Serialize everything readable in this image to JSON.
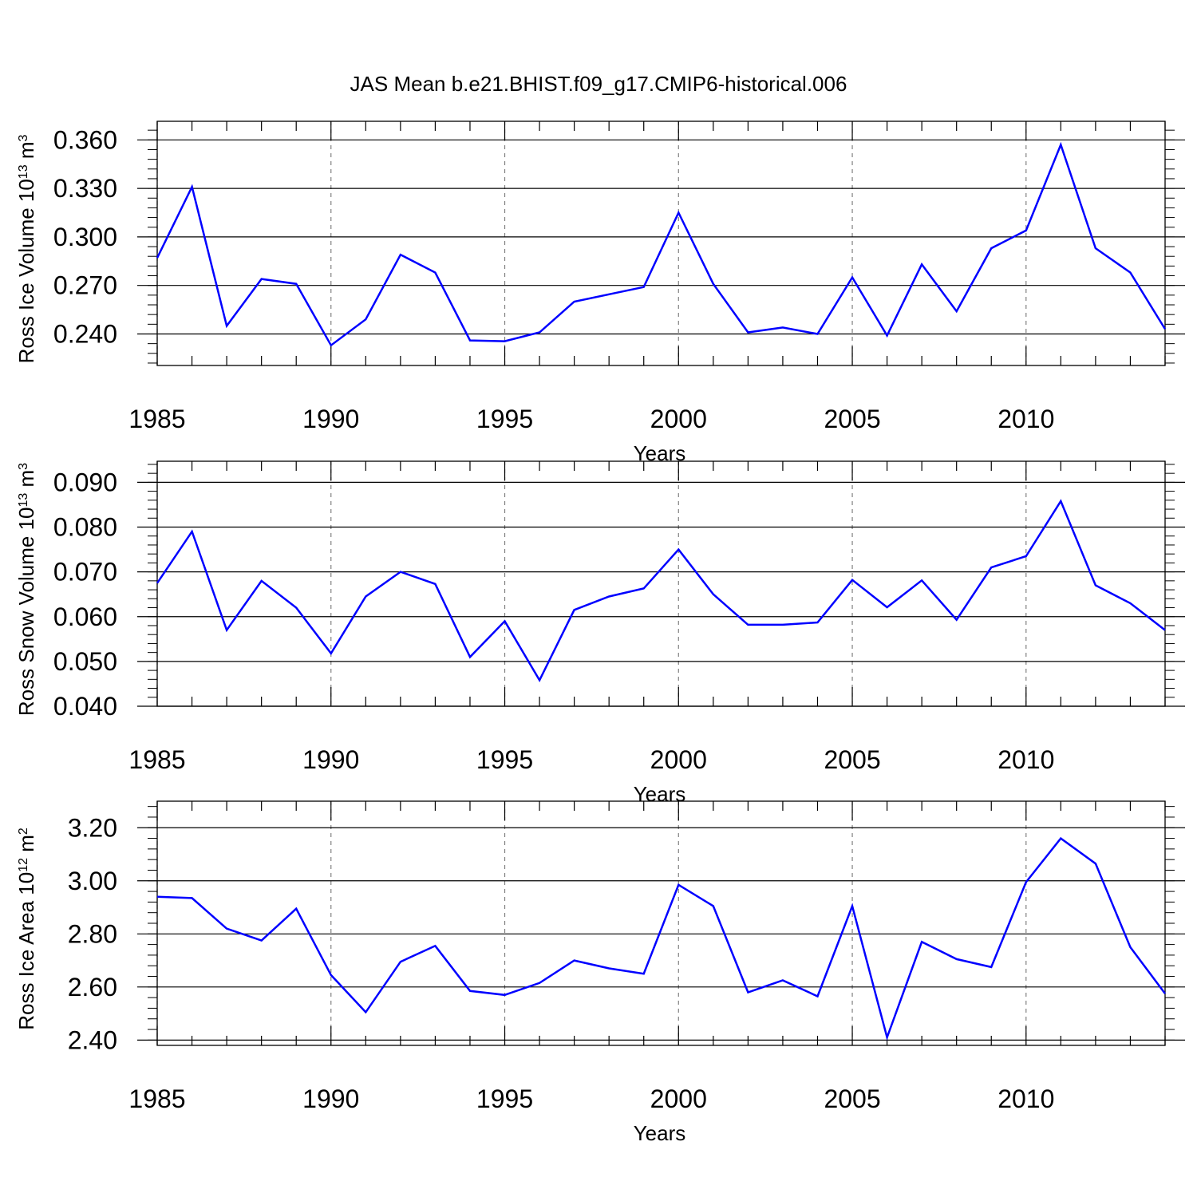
{
  "title": "JAS Mean b.e21.BHIST.f09_g17.CMIP6-historical.006",
  "colors": {
    "line": "#0000ff",
    "axis": "#000000",
    "grid": "#808080"
  },
  "chart_data": [
    {
      "type": "line",
      "title": "JAS Mean b.e21.BHIST.f09_g17.CMIP6-historical.006",
      "ylabel": "Ross Ice Volume",
      "yunit": {
        "base": "10",
        "exp": "13",
        "unit": "m",
        "unit_exp": "3"
      },
      "xlabel": "Years",
      "xlim": [
        1985,
        2014
      ],
      "ylim": [
        0.2205,
        0.3715
      ],
      "xticks": [
        "1985",
        "1990",
        "1995",
        "2000",
        "2005",
        "2010"
      ],
      "yticks": [
        "0.240",
        "0.270",
        "0.300",
        "0.330",
        "0.360"
      ],
      "grid": "dashed vertical at major x ticks",
      "x": [
        1985,
        1986,
        1987,
        1988,
        1989,
        1990,
        1991,
        1992,
        1993,
        1994,
        1995,
        1996,
        1997,
        1998,
        1999,
        2000,
        2001,
        2002,
        2003,
        2004,
        2005,
        2006,
        2007,
        2008,
        2009,
        2010,
        2011,
        2012,
        2013,
        2014
      ],
      "values": [
        0.287,
        0.331,
        0.245,
        0.274,
        0.271,
        0.233,
        0.249,
        0.289,
        0.278,
        0.236,
        0.2355,
        0.241,
        0.26,
        0.2645,
        0.269,
        0.315,
        0.271,
        0.241,
        0.244,
        0.24,
        0.275,
        0.239,
        0.283,
        0.254,
        0.293,
        0.304,
        0.357,
        0.293,
        0.278,
        0.243
      ]
    },
    {
      "type": "line",
      "ylabel": "Ross Snow Volume",
      "yunit": {
        "base": "10",
        "exp": "13",
        "unit": "m",
        "unit_exp": "3"
      },
      "xlabel": "Years",
      "xlim": [
        1985,
        2014
      ],
      "ylim": [
        0.04,
        0.0947
      ],
      "xticks": [
        "1985",
        "1990",
        "1995",
        "2000",
        "2005",
        "2010"
      ],
      "yticks": [
        "0.040",
        "0.050",
        "0.060",
        "0.070",
        "0.080",
        "0.090"
      ],
      "grid": "dashed vertical at major x ticks",
      "x": [
        1985,
        1986,
        1987,
        1988,
        1989,
        1990,
        1991,
        1992,
        1993,
        1994,
        1995,
        1996,
        1997,
        1998,
        1999,
        2000,
        2001,
        2002,
        2003,
        2004,
        2005,
        2006,
        2007,
        2008,
        2009,
        2010,
        2011,
        2012,
        2013,
        2014
      ],
      "values": [
        0.0675,
        0.079,
        0.057,
        0.068,
        0.062,
        0.0518,
        0.0645,
        0.07,
        0.0673,
        0.051,
        0.059,
        0.0458,
        0.0615,
        0.0645,
        0.0663,
        0.075,
        0.065,
        0.0582,
        0.0582,
        0.0587,
        0.0682,
        0.0621,
        0.0681,
        0.0593,
        0.071,
        0.0735,
        0.0858,
        0.067,
        0.063,
        0.057
      ]
    },
    {
      "type": "line",
      "ylabel": "Ross Ice Area",
      "yunit": {
        "base": "10",
        "exp": "12",
        "unit": "m",
        "unit_exp": "2"
      },
      "xlabel": "Years",
      "xlim": [
        1985,
        2014
      ],
      "ylim": [
        2.38,
        3.3
      ],
      "xticks": [
        "1985",
        "1990",
        "1995",
        "2000",
        "2005",
        "2010"
      ],
      "yticks": [
        "2.40",
        "2.60",
        "2.80",
        "3.00",
        "3.20"
      ],
      "grid": "dashed vertical at major x ticks",
      "x": [
        1985,
        1986,
        1987,
        1988,
        1989,
        1990,
        1991,
        1992,
        1993,
        1994,
        1995,
        1996,
        1997,
        1998,
        1999,
        2000,
        2001,
        2002,
        2003,
        2004,
        2005,
        2006,
        2007,
        2008,
        2009,
        2010,
        2011,
        2012,
        2013,
        2014
      ],
      "values": [
        2.94,
        2.935,
        2.82,
        2.775,
        2.895,
        2.645,
        2.505,
        2.695,
        2.755,
        2.585,
        2.57,
        2.615,
        2.7,
        2.67,
        2.65,
        2.985,
        2.905,
        2.58,
        2.625,
        2.565,
        2.905,
        2.41,
        2.77,
        2.705,
        2.675,
        2.995,
        3.16,
        3.065,
        2.75,
        2.575
      ]
    }
  ]
}
